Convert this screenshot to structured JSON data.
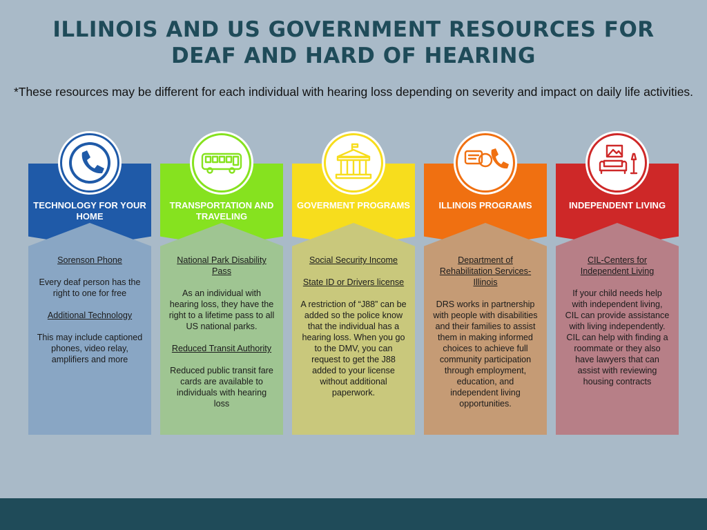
{
  "title_line1": "ILLINOIS AND US GOVERNMENT RESOURCES FOR",
  "title_line2": "DEAF AND HARD OF HEARING",
  "subtitle": "*These resources may be different for each individual with hearing loss depending on severity and impact on daily life activities.",
  "cards": [
    {
      "title": "TECHNOLOGY FOR YOUR HOME",
      "icon": "phone-icon",
      "color": "#1f5aa8",
      "body_color": "#89a6c4",
      "items": [
        {
          "text": "Sorenson Phone",
          "link": true
        },
        {
          "text": "Every deaf person has the right to one for free",
          "link": false
        },
        {
          "text": "Additional Technology",
          "link": true
        },
        {
          "text": "This may include captioned phones, video relay, amplifiers and more",
          "link": false
        }
      ]
    },
    {
      "title": "TRANSPORTATION AND TRAVELING",
      "icon": "bus-icon",
      "color": "#86e21f",
      "body_color": "#9fc592",
      "items": [
        {
          "text": "National Park Disability Pass",
          "link": true
        },
        {
          "text": "As an individual with hearing loss, they have the right to a lifetime pass to all US national parks.",
          "link": false
        },
        {
          "text": "Reduced Transit Authority",
          "link": true
        },
        {
          "text": "Reduced public transit fare cards are available to individuals with hearing loss",
          "link": false
        }
      ]
    },
    {
      "title": "GOVERMENT PROGRAMS",
      "icon": "government-building-icon",
      "color": "#f7dd1d",
      "body_color": "#c9c87c",
      "items": [
        {
          "text": "Social Security Income",
          "link": true
        },
        {
          "text": "State ID or Drivers license",
          "link": true
        },
        {
          "text": "A restriction of “J88” can be added so the police know that the individual has a hearing loss. When you go to the DMV, you can request to get the J88 added to your license without additional paperwork.",
          "link": false
        }
      ]
    },
    {
      "title": "ILLINOIS PROGRAMS",
      "icon": "chat-phone-icon",
      "color": "#f07011",
      "body_color": "#c59b75",
      "items": [
        {
          "text": "Department of Rehabilitation Services-Illinois",
          "link": true
        },
        {
          "text": "DRS works in partnership with people with disabilities and their families to assist them in making informed choices to achieve full community participation through employment, education, and independent living opportunities.",
          "link": false
        }
      ]
    },
    {
      "title": "INDEPENDENT LIVING",
      "icon": "living-room-icon",
      "color": "#ce2828",
      "body_color": "#b77f87",
      "items": [
        {
          "text": "CIL-Centers for Independent Living",
          "link": true
        },
        {
          "text": "If your child needs help with independent living, CIL can provide assistance with living independently. CIL can help with finding a roommate or they also have lawyers that can assist with reviewing housing contracts",
          "link": false
        }
      ]
    }
  ]
}
